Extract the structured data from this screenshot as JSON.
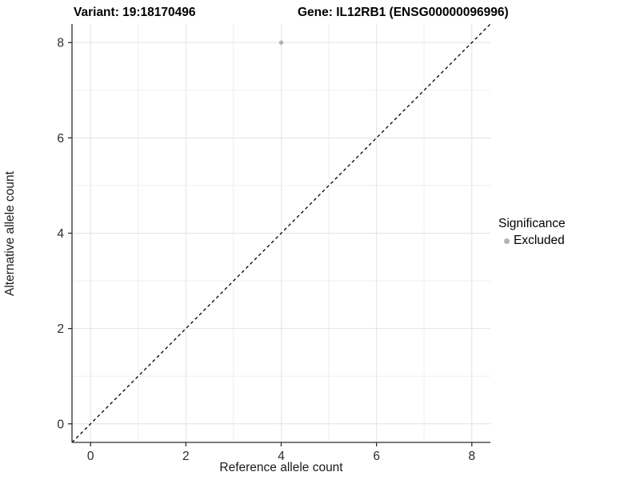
{
  "title": {
    "variant": "Variant: 19:18170496",
    "gene": "Gene: IL12RB1 (ENSG00000096996)"
  },
  "axes": {
    "x_label": "Reference allele count",
    "y_label": "Alternative allele count",
    "x_ticks": [
      0,
      2,
      4,
      6,
      8
    ],
    "y_ticks": [
      0,
      2,
      4,
      6,
      8
    ]
  },
  "legend": {
    "title": "Significance",
    "items": [
      {
        "label": "Excluded",
        "color": "#b3b3b3"
      }
    ]
  },
  "colors": {
    "background": "#ffffff",
    "grid_major": "#e3e3e3",
    "grid_minor": "#efefef",
    "axis_line": "#2e2e2e",
    "tick_mark": "#2e2e2e",
    "identity_line": "#000000",
    "point": "#b3b3b3",
    "title_text": "#000000",
    "axis_text": "#1a1a1a"
  },
  "chart_data": {
    "type": "scatter",
    "title": "Variant: 19:18170496   Gene: IL12RB1 (ENSG00000096996)",
    "xlabel": "Reference allele count",
    "ylabel": "Alternative allele count",
    "xlim": [
      -0.39,
      8.39
    ],
    "ylim": [
      -0.39,
      8.39
    ],
    "x_ticks": [
      0,
      2,
      4,
      6,
      8
    ],
    "y_ticks": [
      0,
      2,
      4,
      6,
      8
    ],
    "x_minor_ticks": [
      1,
      3,
      5,
      7
    ],
    "y_minor_ticks": [
      1,
      3,
      5,
      7
    ],
    "grid": true,
    "legend_position": "right",
    "series": [
      {
        "name": "Excluded",
        "color": "#b3b3b3",
        "points": [
          {
            "x": 4,
            "y": 8
          }
        ]
      }
    ],
    "reference_line": {
      "type": "identity",
      "slope": 1,
      "intercept": 0,
      "style": "dashed",
      "color": "#000000"
    }
  }
}
